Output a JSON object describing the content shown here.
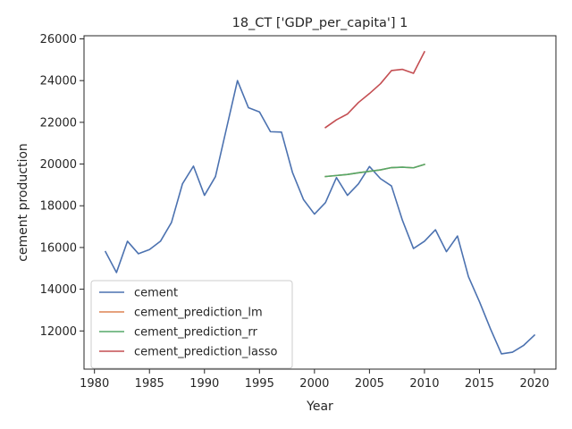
{
  "chart_data": {
    "type": "line",
    "title": "18_CT ['GDP_per_capita'] 1",
    "xlabel": "Year",
    "ylabel": "cement production",
    "xlim": [
      1979.05,
      2021.95
    ],
    "ylim": [
      10170,
      26150
    ],
    "xticks": [
      1980,
      1985,
      1990,
      1995,
      2000,
      2005,
      2010,
      2015,
      2020
    ],
    "yticks": [
      12000,
      14000,
      16000,
      18000,
      20000,
      22000,
      24000,
      26000
    ],
    "xtick_labels": [
      "1980",
      "1985",
      "1990",
      "1995",
      "2000",
      "2005",
      "2010",
      "2015",
      "2020"
    ],
    "ytick_labels": [
      "12000",
      "14000",
      "16000",
      "18000",
      "20000",
      "22000",
      "24000",
      "26000"
    ],
    "grid": false,
    "legend_position": "lower-left",
    "series": [
      {
        "name": "cement",
        "color": "#4c72b0",
        "x": [
          1981,
          1982,
          1983,
          1984,
          1985,
          1986,
          1987,
          1988,
          1989,
          1990,
          1991,
          1992,
          1993,
          1994,
          1995,
          1996,
          1997,
          1998,
          1999,
          2000,
          2001,
          2002,
          2003,
          2004,
          2005,
          2006,
          2007,
          2008,
          2009,
          2010,
          2011,
          2012,
          2013,
          2014,
          2015,
          2016,
          2017,
          2018,
          2019,
          2020
        ],
        "y": [
          15800,
          14800,
          16300,
          15700,
          15900,
          16300,
          17200,
          19050,
          19900,
          18500,
          19400,
          21700,
          24000,
          22700,
          22500,
          21550,
          21530,
          19600,
          18300,
          17600,
          18150,
          19350,
          18500,
          19050,
          19880,
          19300,
          18950,
          17300,
          15950,
          16300,
          16850,
          15800,
          16550,
          14600,
          13400,
          12100,
          10900,
          10980,
          11300,
          11800
        ]
      },
      {
        "name": "cement_prediction_lm",
        "color": "#dd8452",
        "x": [
          2001,
          2002,
          2003,
          2004,
          2005,
          2006,
          2007,
          2008,
          2009,
          2010
        ],
        "y": [
          19400,
          19450,
          19500,
          19580,
          19650,
          19720,
          19830,
          19850,
          19820,
          19980
        ]
      },
      {
        "name": "cement_prediction_rr",
        "color": "#55a868",
        "x": [
          2001,
          2002,
          2003,
          2004,
          2005,
          2006,
          2007,
          2008,
          2009,
          2010
        ],
        "y": [
          19400,
          19450,
          19500,
          19580,
          19650,
          19720,
          19830,
          19850,
          19820,
          19980
        ]
      },
      {
        "name": "cement_prediction_lasso",
        "color": "#c44e52",
        "x": [
          2001,
          2002,
          2003,
          2004,
          2005,
          2006,
          2007,
          2008,
          2009,
          2010
        ],
        "y": [
          21750,
          22120,
          22400,
          22950,
          23380,
          23850,
          24480,
          24540,
          24350,
          25380
        ]
      }
    ]
  }
}
